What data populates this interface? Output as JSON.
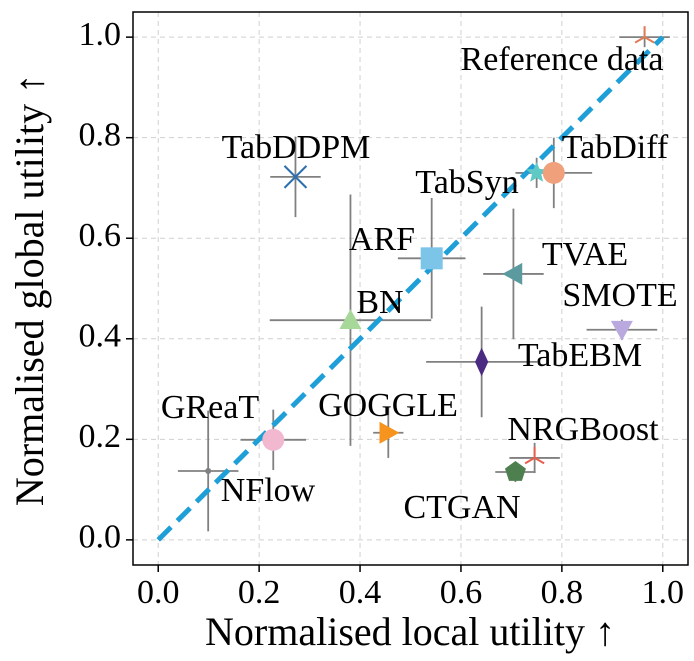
{
  "chart_data": {
    "type": "scatter",
    "xlabel": "Normalised local utility ↑",
    "ylabel": "Normalised global utility ↑",
    "xlim": [
      -0.05,
      1.05
    ],
    "ylim": [
      -0.05,
      1.05
    ],
    "xticks": [
      {
        "value": 0,
        "label": "0.0"
      },
      0.2,
      0.4,
      0.6,
      0.8,
      {
        "value": 1,
        "label": "1.0"
      }
    ],
    "yticks": [
      {
        "value": 0,
        "label": "0.0"
      },
      0.2,
      0.4,
      0.6,
      0.8,
      {
        "value": 1,
        "label": "1.0"
      }
    ],
    "grid": true,
    "diagonal": true,
    "diagonal_color": "#1f9fd8",
    "errorbar_color": "#808080",
    "points": [
      {
        "name": "Reference data",
        "x": 0.964,
        "y": 1.0,
        "xerr": 0.05,
        "yerr": 0.02,
        "marker": "tri",
        "color": "#e07b54"
      },
      {
        "name": "TabDDPM",
        "x": 0.272,
        "y": 0.722,
        "xerr": 0.05,
        "yerr": 0.08,
        "marker": "x",
        "color": "#2a6fb0"
      },
      {
        "name": "TabSyn",
        "x": 0.75,
        "y": 0.73,
        "xerr": 0.04,
        "yerr": 0.03,
        "marker": "star",
        "color": "#5fc9c6"
      },
      {
        "name": "TabDiff",
        "x": 0.784,
        "y": 0.73,
        "xerr": 0.076,
        "yerr": 0.07,
        "marker": "circle",
        "color": "#f0a07a"
      },
      {
        "name": "ARF",
        "x": 0.542,
        "y": 0.56,
        "xerr": 0.067,
        "yerr": 0.12,
        "marker": "square",
        "color": "#7cc4e8"
      },
      {
        "name": "TVAE",
        "x": 0.704,
        "y": 0.529,
        "xerr": 0.06,
        "yerr": 0.13,
        "marker": "tri-left",
        "color": "#5b9a9e"
      },
      {
        "name": "BN",
        "x": 0.381,
        "y": 0.437,
        "xerr": 0.16,
        "yerr": 0.25,
        "marker": "tri-up",
        "color": "#a6d89a"
      },
      {
        "name": "SMOTE",
        "x": 0.919,
        "y": 0.418,
        "xerr": 0.07,
        "yerr": 0.02,
        "marker": "tri-down",
        "color": "#b9a9df"
      },
      {
        "name": "TabEBM",
        "x": 0.641,
        "y": 0.354,
        "xerr": 0.11,
        "yerr": 0.11,
        "marker": "diamond",
        "color": "#4b2a82"
      },
      {
        "name": "GReaT",
        "x": 0.228,
        "y": 0.199,
        "xerr": 0.065,
        "yerr": 0.06,
        "marker": "circle",
        "color": "#f2b8d0"
      },
      {
        "name": "GOGGLE",
        "x": 0.456,
        "y": 0.213,
        "xerr": 0.03,
        "yerr": 0.05,
        "marker": "tri-right",
        "color": "#f7941d"
      },
      {
        "name": "NRGBoost",
        "x": 0.746,
        "y": 0.163,
        "xerr": 0.05,
        "yerr": 0.03,
        "marker": "tri",
        "color": "#e8604c"
      },
      {
        "name": "CTGAN",
        "x": 0.708,
        "y": 0.135,
        "xerr": 0.04,
        "yerr": 0.02,
        "marker": "pentagon",
        "color": "#4e7f4e"
      },
      {
        "name": "NFlow",
        "x": 0.099,
        "y": 0.137,
        "xerr": 0.06,
        "yerr": 0.12,
        "marker": "dot",
        "color": "#808080"
      }
    ]
  }
}
